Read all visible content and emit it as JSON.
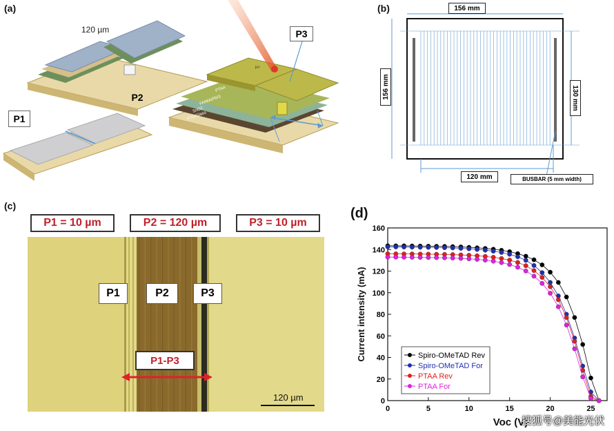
{
  "panels": {
    "a": {
      "letter": "(a)",
      "width_label": "120 µm",
      "p1": "P1",
      "p2": "P2",
      "p3": "P3",
      "layers": [
        "Au",
        "PTAA",
        "FA/MA/PbI3",
        "SnO2",
        "FTO/Glass"
      ]
    },
    "b": {
      "letter": "(b)",
      "top_dim": "156 mm",
      "left_dim": "156 mm",
      "right_dim": "130 mm",
      "bottom_dim": "120 mm",
      "busbar": "BUSBAR (5 mm width)"
    },
    "c": {
      "letter": "(c)",
      "p1_width": "P1 = 10 µm",
      "p2_width": "P2 = 120 µm",
      "p3_width": "P3 = 10 µm",
      "p1": "P1",
      "p2": "P2",
      "p3": "P3",
      "span": "P1-P3",
      "scale": "120 µm"
    },
    "d": {
      "letter": "(d)"
    }
  },
  "watermark": "搜狐号@美能光伏",
  "colors": {
    "spiro_rev": "#000000",
    "spiro_for": "#1f2fb0",
    "ptaa_rev": "#e02020",
    "ptaa_for": "#e020e0",
    "micrograph_bg": "#e3d98a",
    "p2_channel": "#8a6a2c",
    "label_red": "#c0202a"
  },
  "chart_data": {
    "type": "line",
    "title": "",
    "xlabel": "Voc (V)",
    "ylabel": "Current intensity (mA)",
    "xlim": [
      0,
      27
    ],
    "ylim": [
      0,
      160
    ],
    "xticks": [
      0,
      5,
      10,
      15,
      20,
      25
    ],
    "yticks": [
      0,
      20,
      40,
      60,
      80,
      100,
      120,
      140,
      160
    ],
    "legend_position": "bottom-left",
    "x": [
      0,
      1,
      2,
      3,
      4,
      5,
      6,
      7,
      8,
      9,
      10,
      11,
      12,
      13,
      14,
      15,
      16,
      17,
      18,
      19,
      20,
      21,
      22,
      23,
      24,
      25,
      26
    ],
    "series": [
      {
        "name": "Spiro-OMeTAD Rev",
        "color": "#000000",
        "values": [
          143.5,
          143.4,
          143.4,
          143.3,
          143.2,
          143.1,
          143,
          142.9,
          142.7,
          142.4,
          142,
          141.6,
          141,
          140.3,
          139.3,
          138,
          136.2,
          133.8,
          130.5,
          125.8,
          119,
          109.5,
          96,
          77,
          52,
          21,
          0
        ]
      },
      {
        "name": "Spiro-OMeTAD For",
        "color": "#1f2fb0",
        "values": [
          142.5,
          142.4,
          142.3,
          142.2,
          142.1,
          142,
          141.9,
          141.7,
          141.5,
          141.1,
          140.7,
          140.1,
          139.4,
          138.5,
          137.3,
          135.6,
          133.3,
          130,
          125.2,
          118.6,
          109.5,
          97,
          80,
          58,
          32,
          8,
          0
        ]
      },
      {
        "name": "PTAA Rev",
        "color": "#e02020",
        "values": [
          136,
          136,
          135.9,
          135.9,
          135.8,
          135.7,
          135.6,
          135.5,
          135.3,
          135,
          134.7,
          134.2,
          133.6,
          132.8,
          131.7,
          130.2,
          128,
          125,
          120.5,
          114.2,
          105.5,
          93.5,
          77,
          55,
          28,
          4,
          0
        ]
      },
      {
        "name": "PTAA For",
        "color": "#e020e0",
        "values": [
          133,
          133,
          132.9,
          132.8,
          132.7,
          132.6,
          132.5,
          132.3,
          132.1,
          131.8,
          131.4,
          130.9,
          130.2,
          129.2,
          127.9,
          126.1,
          123.6,
          120.1,
          115.3,
          108.6,
          99.5,
          87,
          70,
          48,
          22,
          2,
          0
        ]
      }
    ]
  }
}
